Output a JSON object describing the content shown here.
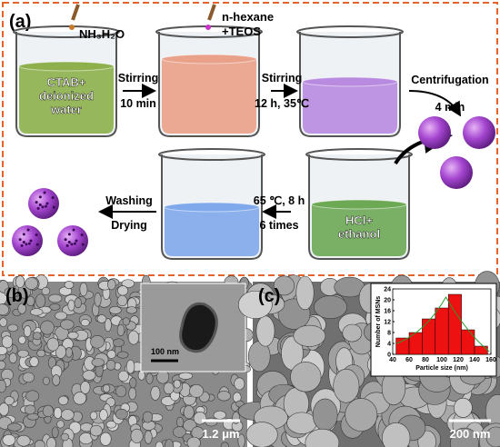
{
  "panel_a": {
    "label": "(a)",
    "reagent_1": "NH₃H₂O",
    "reagent_2": [
      "n-hexane",
      "+TEOS"
    ],
    "beaker_1": [
      "CTAB+",
      "deionized",
      "water"
    ],
    "step_1": [
      "Stirring",
      "10 min"
    ],
    "step_2": [
      "Stirring",
      "12 h, 35℃"
    ],
    "step_3": [
      "Centrifugation",
      "4 min"
    ],
    "beaker_5": [
      "HCl+",
      "ethanol"
    ],
    "step_4": [
      "65 ℃, 8 h",
      "6 times"
    ],
    "step_5": [
      "Washing",
      "Drying"
    ]
  },
  "panel_b": {
    "label": "(b)",
    "inset_scale": "100 nm",
    "scale": "1.2 μm"
  },
  "panel_c": {
    "label": "(c)",
    "scale": "200 nm"
  },
  "chart_data": {
    "type": "histogram",
    "xlabel": "Particle size (nm)",
    "ylabel": "Number of MSNs",
    "bins": [
      44,
      60,
      76,
      92,
      108,
      124,
      140,
      156
    ],
    "values": [
      6,
      8,
      13,
      17,
      22,
      9,
      3
    ],
    "color": "#ee1111",
    "xlim": [
      40,
      160
    ],
    "xticks": [
      40,
      60,
      80,
      100,
      120,
      140,
      160
    ],
    "ylim": [
      0,
      24
    ],
    "yticks": [
      0,
      4,
      8,
      12,
      16,
      20,
      24
    ]
  }
}
